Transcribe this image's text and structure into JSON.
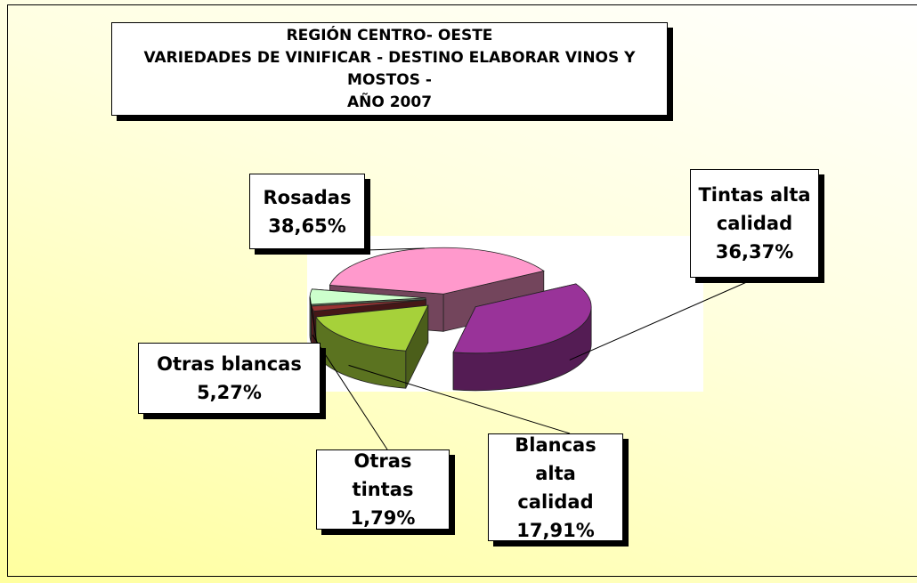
{
  "chart_data": {
    "type": "pie3d",
    "title": [
      "REGIÓN CENTRO- OESTE",
      "VARIEDADES DE VINIFICAR - DESTINO ELABORAR VINOS Y MOSTOS -",
      "AÑO 2007"
    ],
    "categories": [
      "Rosadas",
      "Tintas alta calidad",
      "Blancas alta calidad",
      "Otras tintas",
      "Otras blancas"
    ],
    "values": [
      38.65,
      36.37,
      17.91,
      1.79,
      5.27
    ],
    "value_labels": [
      "38,65%",
      "36,37%",
      "17,91%",
      "1,79%",
      "5,27%"
    ],
    "colors": [
      "#ff99cc",
      "#993399",
      "#a6d13a",
      "#993333",
      "#ccffcc"
    ]
  }
}
